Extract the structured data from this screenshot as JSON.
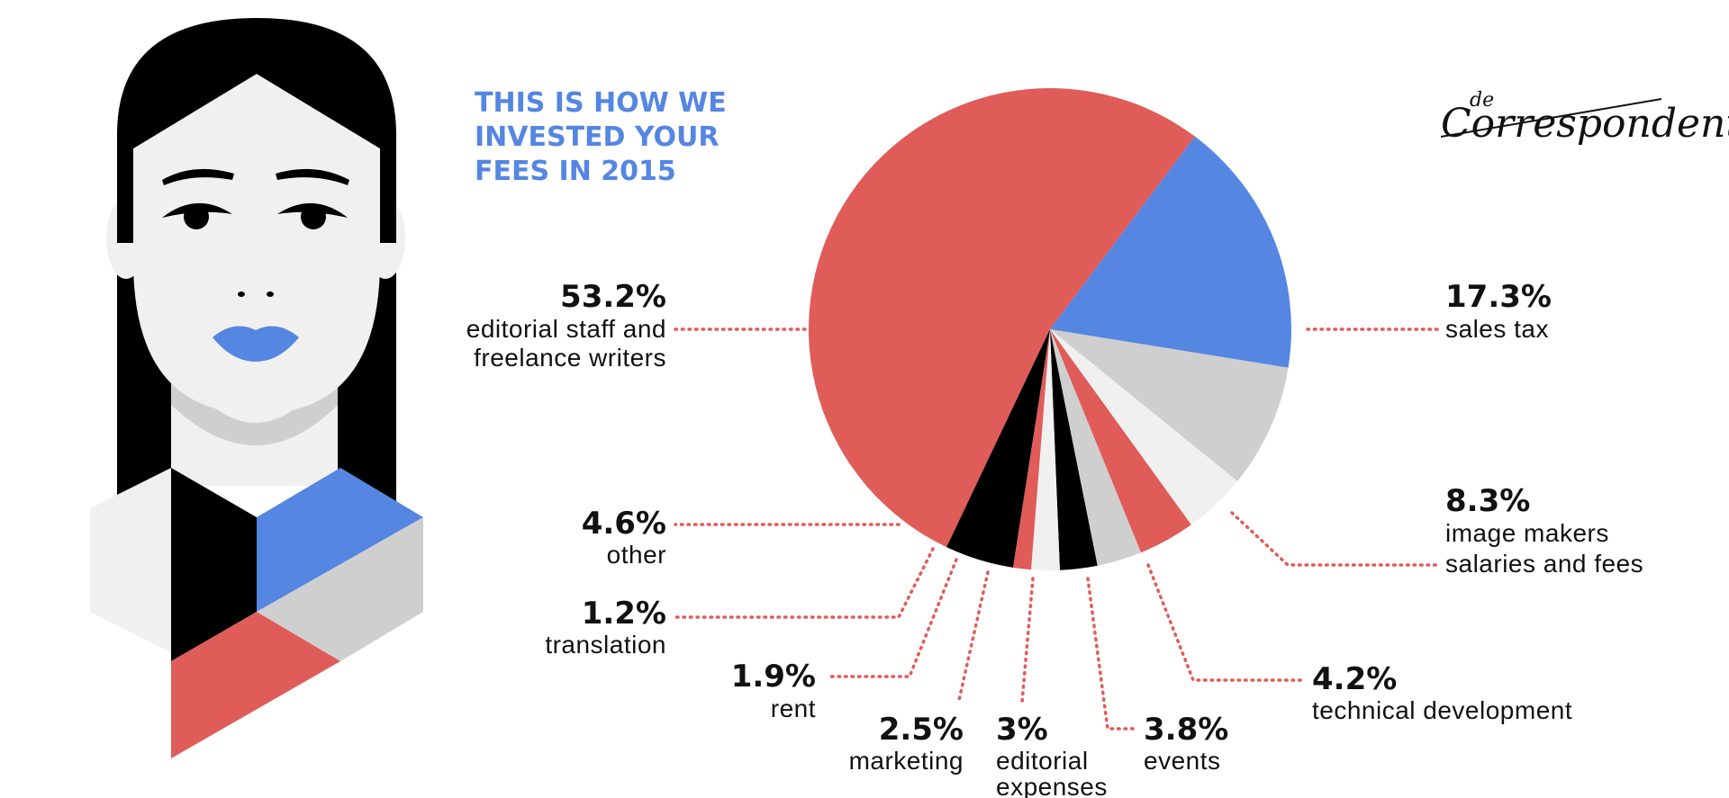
{
  "title_lines": [
    "THIS IS HOW WE",
    "INVESTED YOUR",
    "FEES IN 2015"
  ],
  "logo": {
    "small": "de",
    "main": "Correspondent"
  },
  "colors": {
    "red": "#e05c58",
    "blue": "#5486e2",
    "black": "#000000",
    "light_gray": "#f0f0f0",
    "mid_gray": "#cfcfcf",
    "leader": "#e05c58"
  },
  "chart_data": {
    "type": "pie",
    "title": "THIS IS HOW WE INVESTED YOUR FEES IN 2015",
    "unit": "%",
    "slices": [
      {
        "label": "editorial staff and freelance writers",
        "value": 53.2,
        "pct_label": "53.2%",
        "label_lines": [
          "editorial staff and",
          "freelance writers"
        ],
        "color": "#e05c58"
      },
      {
        "label": "sales tax",
        "value": 17.3,
        "pct_label": "17.3%",
        "label_lines": [
          "sales tax"
        ],
        "color": "#5486e2"
      },
      {
        "label": "image makers salaries and fees",
        "value": 8.3,
        "pct_label": "8.3%",
        "label_lines": [
          "image makers",
          "salaries and fees"
        ],
        "color": "#cfcfcf"
      },
      {
        "label": "technical development",
        "value": 4.2,
        "pct_label": "4.2%",
        "label_lines": [
          "technical development"
        ],
        "color": "#f0f0f0"
      },
      {
        "label": "events",
        "value": 3.8,
        "pct_label": "3.8%",
        "label_lines": [
          "events"
        ],
        "color": "#e05c58"
      },
      {
        "label": "editorial expenses",
        "value": 3,
        "pct_label": "3%",
        "label_lines": [
          "editorial",
          "expenses"
        ],
        "color": "#cfcfcf"
      },
      {
        "label": "marketing",
        "value": 2.5,
        "pct_label": "2.5%",
        "label_lines": [
          "marketing"
        ],
        "color": "#000000"
      },
      {
        "label": "rent",
        "value": 1.9,
        "pct_label": "1.9%",
        "label_lines": [
          "rent"
        ],
        "color": "#f0f0f0"
      },
      {
        "label": "translation",
        "value": 1.2,
        "pct_label": "1.2%",
        "label_lines": [
          "translation"
        ],
        "color": "#e05c58"
      },
      {
        "label": "other",
        "value": 4.6,
        "pct_label": "4.6%",
        "label_lines": [
          "other"
        ],
        "color": "#000000"
      }
    ]
  }
}
